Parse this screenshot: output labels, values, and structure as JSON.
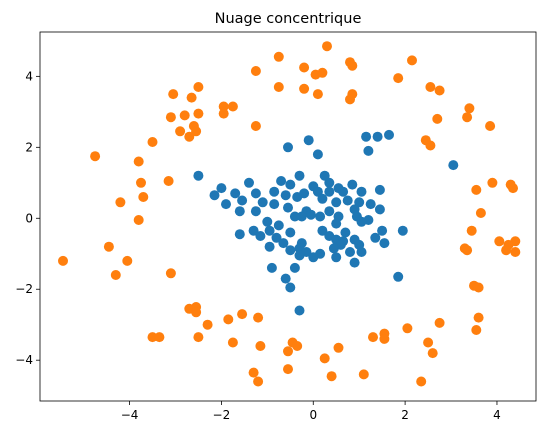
{
  "chart_data": {
    "type": "scatter",
    "title": "Nuage concentrique",
    "xlabel": "",
    "ylabel": "",
    "xlim": [
      -5.95,
      4.85
    ],
    "ylim": [
      -5.15,
      5.25
    ],
    "xticks": [
      -4,
      -2,
      0,
      2,
      4
    ],
    "yticks": [
      -4,
      -2,
      0,
      2,
      4
    ],
    "xtick_labels": [
      "−4",
      "−2",
      "0",
      "2",
      "4"
    ],
    "ytick_labels": [
      "−4",
      "−2",
      "0",
      "2",
      "4"
    ],
    "grid": false,
    "legend": "none",
    "series": [
      {
        "color": "#1f77b4",
        "points": [
          [
            -0.1,
            2.2
          ],
          [
            0.1,
            1.8
          ],
          [
            -0.55,
            2.0
          ],
          [
            1.15,
            2.3
          ],
          [
            1.4,
            2.3
          ],
          [
            1.65,
            2.35
          ],
          [
            1.2,
            1.9
          ],
          [
            3.05,
            1.5
          ],
          [
            -2.5,
            1.2
          ],
          [
            0.25,
            1.2
          ],
          [
            -0.3,
            1.2
          ],
          [
            0.35,
            1.0
          ],
          [
            -0.7,
            1.05
          ],
          [
            -1.4,
            1.0
          ],
          [
            -0.5,
            0.95
          ],
          [
            0.0,
            0.9
          ],
          [
            0.55,
            0.85
          ],
          [
            0.85,
            0.95
          ],
          [
            -2.0,
            0.85
          ],
          [
            -1.7,
            0.7
          ],
          [
            -1.25,
            0.7
          ],
          [
            -0.85,
            0.75
          ],
          [
            -0.2,
            0.7
          ],
          [
            0.1,
            0.75
          ],
          [
            0.35,
            0.75
          ],
          [
            0.65,
            0.75
          ],
          [
            1.05,
            0.75
          ],
          [
            1.45,
            0.8
          ],
          [
            -2.15,
            0.65
          ],
          [
            -0.6,
            0.65
          ],
          [
            -0.35,
            0.6
          ],
          [
            0.2,
            0.55
          ],
          [
            0.5,
            0.45
          ],
          [
            0.75,
            0.5
          ],
          [
            1.0,
            0.45
          ],
          [
            1.25,
            0.4
          ],
          [
            -1.9,
            0.4
          ],
          [
            -1.55,
            0.5
          ],
          [
            -1.1,
            0.45
          ],
          [
            -0.85,
            0.4
          ],
          [
            -0.55,
            0.3
          ],
          [
            -0.15,
            0.2
          ],
          [
            0.35,
            0.2
          ],
          [
            0.9,
            0.25
          ],
          [
            1.45,
            0.25
          ],
          [
            -1.25,
            0.2
          ],
          [
            -0.05,
            0.1
          ],
          [
            -0.4,
            0.05
          ],
          [
            -0.25,
            0.05
          ],
          [
            0.15,
            0.05
          ],
          [
            0.55,
            0.05
          ],
          [
            0.95,
            0.05
          ],
          [
            1.2,
            -0.05
          ],
          [
            -1.6,
            0.2
          ],
          [
            -1.0,
            -0.1
          ],
          [
            -0.75,
            -0.2
          ],
          [
            0.5,
            -0.15
          ],
          [
            1.05,
            -0.1
          ],
          [
            -0.95,
            -0.35
          ],
          [
            -1.3,
            -0.35
          ],
          [
            -0.5,
            -0.4
          ],
          [
            0.2,
            -0.35
          ],
          [
            0.7,
            -0.4
          ],
          [
            1.5,
            -0.35
          ],
          [
            1.95,
            -0.35
          ],
          [
            -1.6,
            -0.45
          ],
          [
            -1.15,
            -0.5
          ],
          [
            -0.8,
            -0.55
          ],
          [
            0.35,
            -0.5
          ],
          [
            0.5,
            -0.6
          ],
          [
            0.65,
            -0.65
          ],
          [
            0.9,
            -0.6
          ],
          [
            1.35,
            -0.55
          ],
          [
            -0.65,
            -0.7
          ],
          [
            -0.25,
            -0.7
          ],
          [
            0.6,
            -0.75
          ],
          [
            1.0,
            -0.75
          ],
          [
            1.55,
            -0.7
          ],
          [
            -0.95,
            -0.8
          ],
          [
            -0.5,
            -0.9
          ],
          [
            -0.3,
            -0.85
          ],
          [
            0.45,
            -0.85
          ],
          [
            0.8,
            -0.95
          ],
          [
            1.05,
            -0.95
          ],
          [
            0.15,
            -1.0
          ],
          [
            -0.15,
            -0.95
          ],
          [
            0.0,
            -1.1
          ],
          [
            0.5,
            -1.1
          ],
          [
            -0.3,
            -1.05
          ],
          [
            0.9,
            -1.25
          ],
          [
            -0.9,
            -1.4
          ],
          [
            -0.4,
            -1.4
          ],
          [
            -0.6,
            -1.7
          ],
          [
            1.85,
            -1.65
          ],
          [
            -0.5,
            -1.95
          ],
          [
            -0.3,
            -2.6
          ]
        ]
      },
      {
        "color": "#ff7f0e",
        "points": [
          [
            0.3,
            4.85
          ],
          [
            2.15,
            4.45
          ],
          [
            -0.75,
            4.55
          ],
          [
            -0.2,
            4.25
          ],
          [
            -1.25,
            4.15
          ],
          [
            0.05,
            4.05
          ],
          [
            0.2,
            4.1
          ],
          [
            0.8,
            4.4
          ],
          [
            0.85,
            4.3
          ],
          [
            1.85,
            3.95
          ],
          [
            -2.5,
            3.7
          ],
          [
            -0.75,
            3.7
          ],
          [
            -0.2,
            3.65
          ],
          [
            0.1,
            3.5
          ],
          [
            0.85,
            3.5
          ],
          [
            0.8,
            3.35
          ],
          [
            2.55,
            3.7
          ],
          [
            2.75,
            3.6
          ],
          [
            -3.05,
            3.5
          ],
          [
            -2.65,
            3.4
          ],
          [
            -1.95,
            3.15
          ],
          [
            -1.75,
            3.15
          ],
          [
            3.4,
            3.1
          ],
          [
            -3.1,
            2.85
          ],
          [
            -2.8,
            2.9
          ],
          [
            -1.95,
            2.95
          ],
          [
            -2.5,
            2.95
          ],
          [
            3.35,
            2.85
          ],
          [
            2.7,
            2.8
          ],
          [
            -2.6,
            2.6
          ],
          [
            -1.25,
            2.6
          ],
          [
            3.85,
            2.6
          ],
          [
            -2.55,
            2.45
          ],
          [
            -2.9,
            2.45
          ],
          [
            -2.7,
            2.3
          ],
          [
            2.45,
            2.2
          ],
          [
            2.55,
            2.05
          ],
          [
            -3.5,
            2.15
          ],
          [
            -3.8,
            1.6
          ],
          [
            -4.75,
            1.75
          ],
          [
            -3.75,
            1.0
          ],
          [
            -3.15,
            1.05
          ],
          [
            3.9,
            1.0
          ],
          [
            4.3,
            0.95
          ],
          [
            3.55,
            0.8
          ],
          [
            4.35,
            0.85
          ],
          [
            -3.7,
            0.6
          ],
          [
            -4.2,
            0.45
          ],
          [
            3.65,
            0.15
          ],
          [
            -3.8,
            -0.05
          ],
          [
            3.45,
            -0.35
          ],
          [
            4.05,
            -0.65
          ],
          [
            4.4,
            -0.65
          ],
          [
            4.25,
            -0.75
          ],
          [
            -4.45,
            -0.8
          ],
          [
            3.3,
            -0.85
          ],
          [
            3.35,
            -0.9
          ],
          [
            4.2,
            -0.9
          ],
          [
            4.4,
            -0.95
          ],
          [
            -4.05,
            -1.2
          ],
          [
            -5.45,
            -1.2
          ],
          [
            -4.3,
            -1.6
          ],
          [
            -3.1,
            -1.55
          ],
          [
            3.5,
            -1.9
          ],
          [
            3.6,
            -1.95
          ],
          [
            -2.55,
            -2.5
          ],
          [
            -2.7,
            -2.55
          ],
          [
            -2.55,
            -2.65
          ],
          [
            -1.55,
            -2.7
          ],
          [
            -1.2,
            -2.8
          ],
          [
            -2.3,
            -3.0
          ],
          [
            -1.85,
            -2.85
          ],
          [
            3.6,
            -2.8
          ],
          [
            2.75,
            -2.95
          ],
          [
            1.55,
            -3.25
          ],
          [
            2.05,
            -3.1
          ],
          [
            3.55,
            -3.15
          ],
          [
            -3.5,
            -3.35
          ],
          [
            -3.35,
            -3.35
          ],
          [
            -2.5,
            -3.35
          ],
          [
            1.3,
            -3.35
          ],
          [
            1.55,
            -3.4
          ],
          [
            -1.75,
            -3.5
          ],
          [
            -0.45,
            -3.5
          ],
          [
            -0.35,
            -3.6
          ],
          [
            2.5,
            -3.5
          ],
          [
            -1.15,
            -3.6
          ],
          [
            0.55,
            -3.65
          ],
          [
            -0.55,
            -3.75
          ],
          [
            2.6,
            -3.8
          ],
          [
            0.25,
            -3.95
          ],
          [
            -1.3,
            -4.35
          ],
          [
            -0.55,
            -4.25
          ],
          [
            0.4,
            -4.45
          ],
          [
            1.1,
            -4.4
          ],
          [
            -1.2,
            -4.6
          ],
          [
            2.35,
            -4.6
          ]
        ]
      }
    ]
  }
}
